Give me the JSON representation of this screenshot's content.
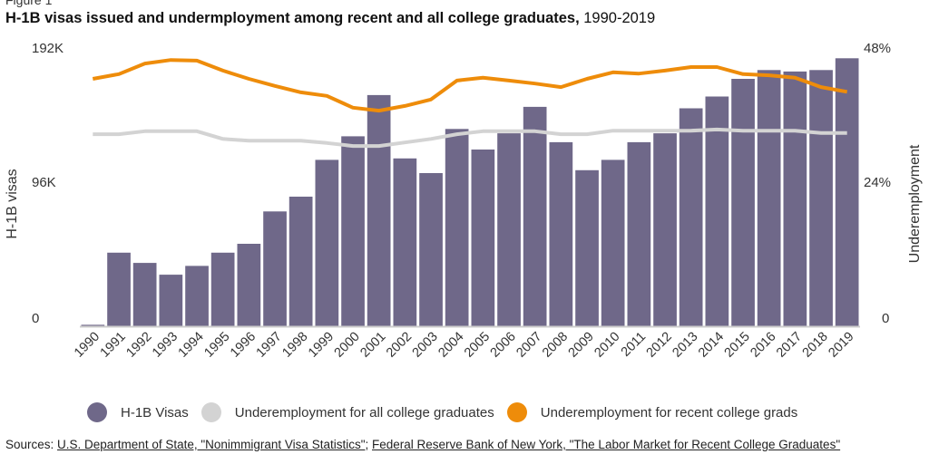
{
  "figure_label": "Figure 1",
  "title": {
    "bold": "H-1B visas issued and undermployment among recent and all college graduates,",
    "range": " 1990-2019"
  },
  "axes": {
    "left_label": "H-1B visas",
    "right_label": "Underemployment",
    "left_ticks": [
      "0",
      "96K",
      "192K"
    ],
    "right_ticks": [
      "0",
      "24%",
      "48%"
    ]
  },
  "legend": [
    {
      "label": "H-1B Visas",
      "color": "#6f6889"
    },
    {
      "label": "Underemployment for all college graduates",
      "color": "#d3d3d3"
    },
    {
      "label": "Underemployment for recent college grads",
      "color": "#ee8c0a"
    }
  ],
  "sources": {
    "prefix": "Sources: ",
    "link1": "U.S. Department of State, \"Nonimmigrant Visa Statistics\"",
    "sep": "; ",
    "link2": "Federal Reserve Bank of New York, \"The Labor Market for Recent College Graduates\""
  },
  "colors": {
    "bars": "#6f6889",
    "all_grads": "#d3d3d3",
    "recent_grads": "#ee8c0a",
    "axis": "#cccccc"
  },
  "chart_data": {
    "type": "bar",
    "title": "H-1B visas issued and undermployment among recent and all college graduates, 1990-2019",
    "xlabel": "",
    "ylabel": "H-1B visas",
    "y2label": "Underemployment",
    "ylim": [
      0,
      192000
    ],
    "y2lim": [
      0,
      48
    ],
    "grid": false,
    "legend_position": "bottom",
    "categories": [
      "1990",
      "1991",
      "1992",
      "1993",
      "1994",
      "1995",
      "1996",
      "1997",
      "1998",
      "1999",
      "2000",
      "2001",
      "2002",
      "2003",
      "2004",
      "2005",
      "2006",
      "2007",
      "2008",
      "2009",
      "2010",
      "2011",
      "2012",
      "2013",
      "2014",
      "2015",
      "2016",
      "2017",
      "2018",
      "2019"
    ],
    "series": [
      {
        "name": "H-1B Visas",
        "type": "bar",
        "axis": "left",
        "unit": "visas",
        "values": [
          1000,
          50000,
          43000,
          35000,
          41000,
          50000,
          56000,
          78000,
          88000,
          113000,
          129000,
          157000,
          114000,
          104000,
          134000,
          120000,
          131000,
          149000,
          125000,
          106000,
          113000,
          125000,
          131000,
          148000,
          156000,
          168000,
          174000,
          173000,
          174000,
          182000
        ]
      },
      {
        "name": "Underemployment for all college graduates",
        "type": "line",
        "axis": "right",
        "unit": "%",
        "values": [
          32.6,
          32.6,
          33.1,
          33.1,
          33.1,
          31.8,
          31.5,
          31.5,
          31.5,
          31.1,
          30.6,
          30.6,
          31.2,
          31.8,
          32.6,
          33.1,
          33.1,
          33.1,
          32.6,
          32.6,
          33.2,
          33.2,
          33.2,
          33.2,
          33.4,
          33.2,
          33.2,
          33.2,
          32.8,
          32.8
        ]
      },
      {
        "name": "Underemployment for recent college grads",
        "type": "line",
        "axis": "right",
        "unit": "%",
        "values": [
          42.0,
          42.8,
          44.6,
          45.2,
          45.1,
          43.4,
          42.0,
          40.8,
          39.7,
          39.1,
          37.1,
          36.6,
          37.4,
          38.5,
          41.7,
          42.2,
          41.7,
          41.2,
          40.6,
          42.0,
          43.1,
          42.9,
          43.4,
          44.0,
          44.0,
          42.8,
          42.6,
          42.2,
          40.6,
          39.8
        ]
      }
    ]
  }
}
